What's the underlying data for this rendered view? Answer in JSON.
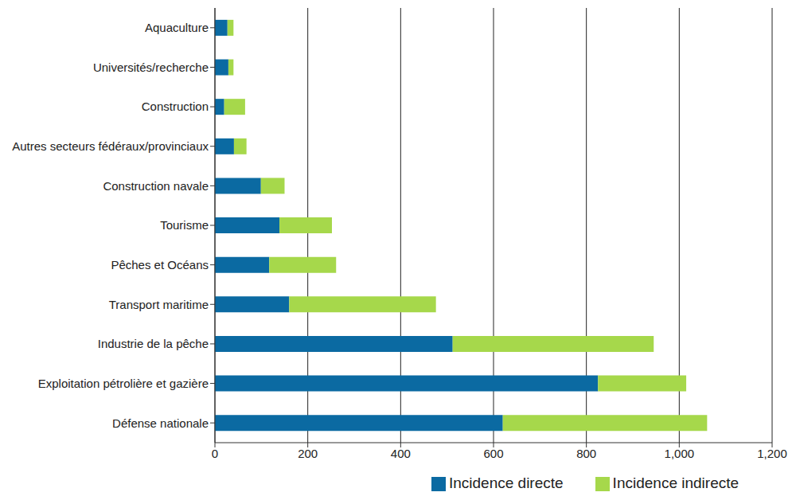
{
  "chart_data": {
    "type": "bar",
    "orientation": "horizontal",
    "stacked": true,
    "grid": true,
    "legend": "bottom",
    "categories": [
      "Aquaculture",
      "Universités/recherche",
      "Construction",
      "Autres secteurs fédéraux/provinciaux",
      "Construction navale",
      "Tourisme",
      "Pêches et Océans",
      "Transport maritime",
      "Industrie de la pêche",
      "Exploitation pétrolière et gazière",
      "Défense nationale"
    ],
    "series": [
      {
        "name": "Incidence directe",
        "color": "#0b6aa2",
        "values": [
          27,
          29,
          20,
          41,
          99,
          139,
          117,
          160,
          512,
          825,
          620
        ]
      },
      {
        "name": "Incidence indirecte",
        "color": "#a6d84b",
        "values": [
          13,
          11,
          45,
          27,
          51,
          113,
          144,
          316,
          433,
          190,
          440
        ]
      }
    ],
    "xlim": [
      0,
      1200
    ],
    "xticks": [
      0,
      200,
      400,
      600,
      800,
      {
        "value": 1000,
        "label": "1,000"
      },
      {
        "value": 1200,
        "label": "1,200"
      }
    ]
  }
}
